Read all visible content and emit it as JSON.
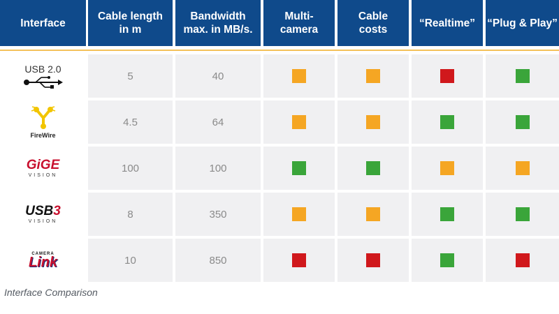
{
  "headers": [
    "Interface",
    "Cable length\nin m",
    "Bandwidth\nmax. in MB/s.",
    "Multi-\ncamera",
    "Cable\ncosts",
    "“Realtime”",
    "“Plug & Play”"
  ],
  "rows": [
    {
      "logo": "usb-2-0-logo",
      "logo_text": "USB 2.0",
      "cable_length": "5",
      "bandwidth": "40",
      "ratings": [
        "orange",
        "orange",
        "red",
        "green"
      ]
    },
    {
      "logo": "firewire-logo",
      "logo_text": "FireWire",
      "cable_length": "4.5",
      "bandwidth": "64",
      "ratings": [
        "orange",
        "orange",
        "green",
        "green"
      ]
    },
    {
      "logo": "gige-vision-logo",
      "logo_text": "GiGE",
      "logo_subtext": "VISION",
      "cable_length": "100",
      "bandwidth": "100",
      "ratings": [
        "green",
        "green",
        "orange",
        "orange"
      ]
    },
    {
      "logo": "usb3-vision-logo",
      "logo_text": "USB",
      "logo_subtext": "VISION",
      "cable_length": "8",
      "bandwidth": "350",
      "ratings": [
        "orange",
        "orange",
        "green",
        "green"
      ]
    },
    {
      "logo": "camera-link-logo",
      "logo_text": "Link",
      "logo_toptext": "CAMERA",
      "cable_length": "10",
      "bandwidth": "850",
      "ratings": [
        "red",
        "red",
        "green",
        "red"
      ]
    }
  ],
  "colors": {
    "header_bg": "#0f4a8b",
    "divider": "#f4c15a",
    "green": "#3aa53a",
    "orange": "#f5a623",
    "red": "#d0181c"
  },
  "caption": "Interface Comparison"
}
